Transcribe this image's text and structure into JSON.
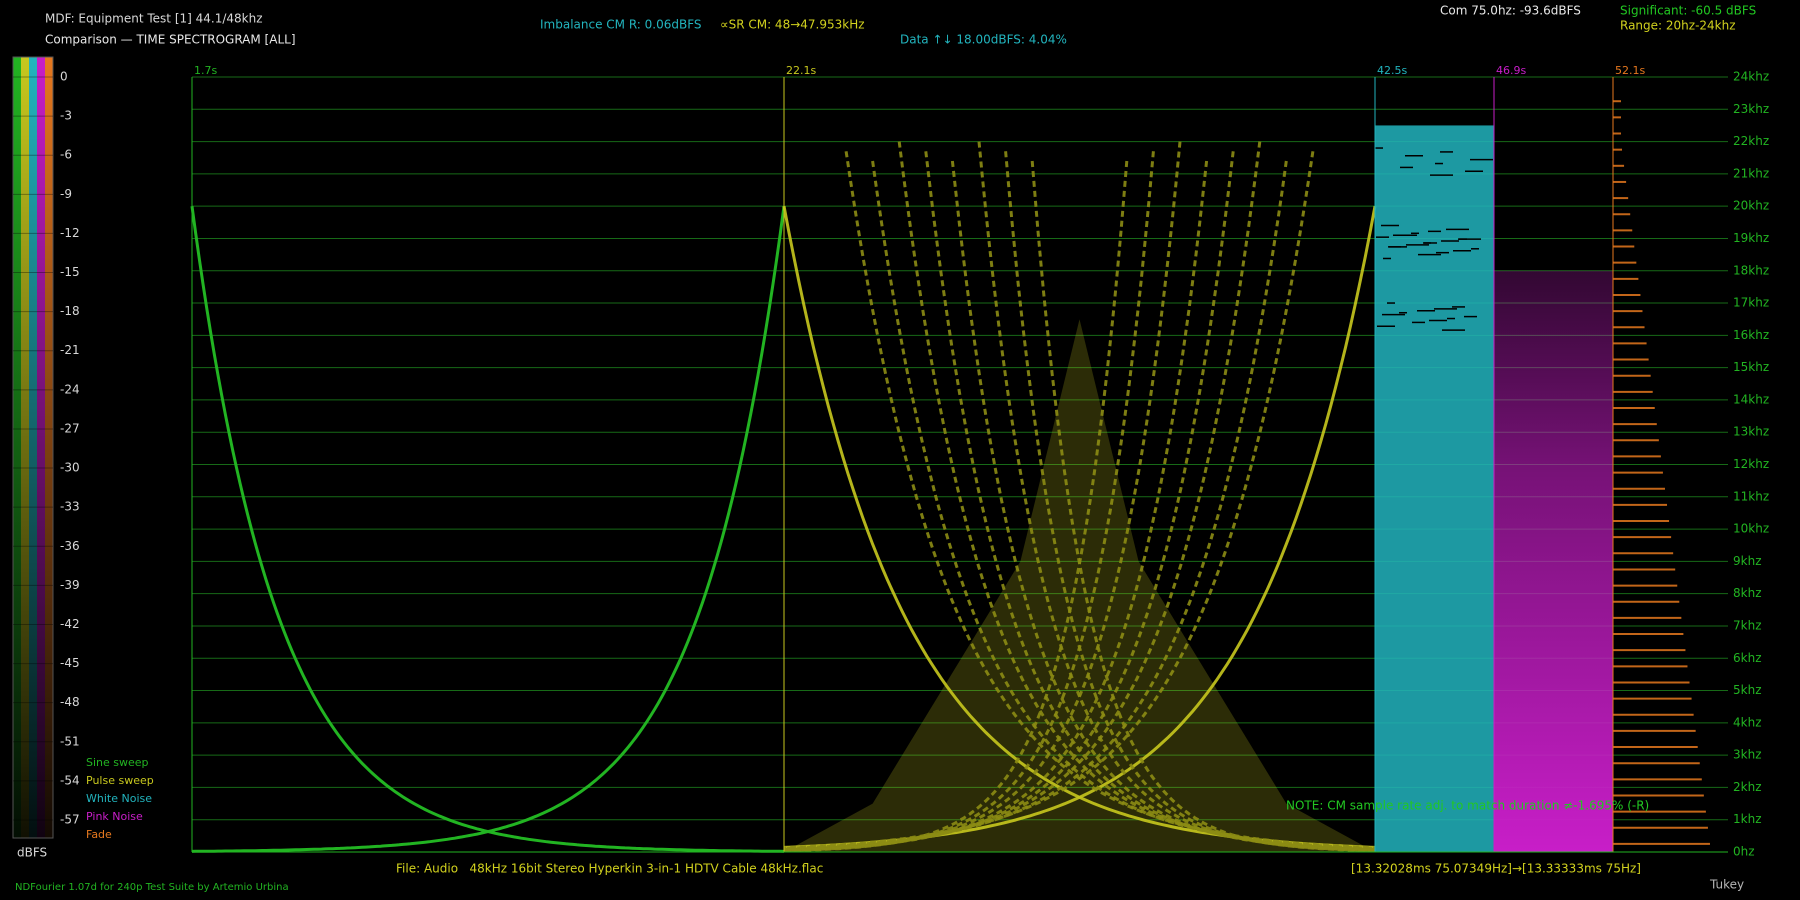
{
  "header": {
    "test_name": "MDF: Equipment Test [1] 44.1/48khz",
    "imbalance": "Imbalance CM R: 0.06dBFS",
    "sample_rate": "∝SR CM: 48→47.953kHz",
    "data_info": "Data ↑↓ 18.00dBFS: 4.04%",
    "common": "Com 75.0hz: -93.6dBFS",
    "significant": "Significant: -60.5 dBFS",
    "range": "Range: 20hz-24khz"
  },
  "footer": {
    "file": "File: Audio   48kHz 16bit Stereo Hyperkin 3-in-1 HDTV Cable 48kHz.flac",
    "frame": "[13.32028ms 75.07349Hz]→[13.33333ms 75Hz]",
    "credits": "NDFourier 1.07d for 240p Test Suite by Artemio Urbina",
    "window": "Tukey"
  },
  "chart_data": {
    "type": "spectrogram",
    "title": "Comparison — TIME SPECTROGRAM [ALL]",
    "note": "NOTE: CM sample rate adj. to match duration ≠-1.695% (-R)",
    "series": [
      {
        "name": "Sine sweep",
        "color": "#22b422",
        "start": "1.7s"
      },
      {
        "name": "Pulse sweep",
        "color": "#c8c81e",
        "start": "22.1s"
      },
      {
        "name": "White Noise",
        "color": "#22b4be",
        "start": "42.5s"
      },
      {
        "name": "Pink Noise",
        "color": "#c81ec8",
        "start": "46.9s"
      },
      {
        "name": "Fade",
        "color": "#e6781e",
        "start": "52.1s"
      }
    ],
    "ylim": [
      0,
      24000
    ],
    "yticks": [
      {
        "value": 0,
        "label": "0hz"
      },
      {
        "value": 1000,
        "label": "1khz"
      },
      {
        "value": 2000,
        "label": "2khz"
      },
      {
        "value": 3000,
        "label": "3khz"
      },
      {
        "value": 4000,
        "label": "4khz"
      },
      {
        "value": 5000,
        "label": "5khz"
      },
      {
        "value": 6000,
        "label": "6khz"
      },
      {
        "value": 7000,
        "label": "7khz"
      },
      {
        "value": 8000,
        "label": "8khz"
      },
      {
        "value": 9000,
        "label": "9khz"
      },
      {
        "value": 10000,
        "label": "10khz"
      },
      {
        "value": 11000,
        "label": "11khz"
      },
      {
        "value": 12000,
        "label": "12khz"
      },
      {
        "value": 13000,
        "label": "13khz"
      },
      {
        "value": 14000,
        "label": "14khz"
      },
      {
        "value": 15000,
        "label": "15khz"
      },
      {
        "value": 16000,
        "label": "16khz"
      },
      {
        "value": 17000,
        "label": "17khz"
      },
      {
        "value": 18000,
        "label": "18khz"
      },
      {
        "value": 19000,
        "label": "19khz"
      },
      {
        "value": 20000,
        "label": "20khz"
      },
      {
        "value": 21000,
        "label": "21khz"
      },
      {
        "value": 22000,
        "label": "22khz"
      },
      {
        "value": 23000,
        "label": "23khz"
      },
      {
        "value": 24000,
        "label": "24khz"
      }
    ],
    "grid": true,
    "colorbar": {
      "label": "dBFS",
      "lim": [
        0,
        -57
      ],
      "ticks": [
        0,
        -3,
        -6,
        -9,
        -12,
        -15,
        -18,
        -21,
        -24,
        -27,
        -30,
        -33,
        -36,
        -39,
        -42,
        -45,
        -48,
        -51,
        -54,
        -57
      ]
    }
  }
}
